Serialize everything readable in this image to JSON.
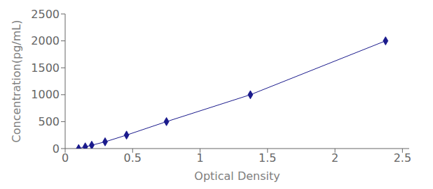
{
  "chart_data": {
    "type": "line",
    "xlabel": "Optical Density",
    "ylabel": "Concentration(pg/mL)",
    "x": [
      0.1,
      0.149,
      0.197,
      0.296,
      0.455,
      0.751,
      1.373,
      2.375
    ],
    "values": [
      0,
      31.25,
      62.5,
      125,
      250,
      500,
      1000,
      2000
    ],
    "color": "#1a1a8c",
    "marker": "diamond",
    "xlim": [
      0.0,
      2.55
    ],
    "ylim": [
      0,
      2500
    ],
    "xticks": [
      0,
      0.5,
      1,
      1.5,
      2,
      2.5
    ],
    "yticks": [
      0,
      500,
      1000,
      1500,
      2000,
      2500
    ],
    "grid": false
  }
}
